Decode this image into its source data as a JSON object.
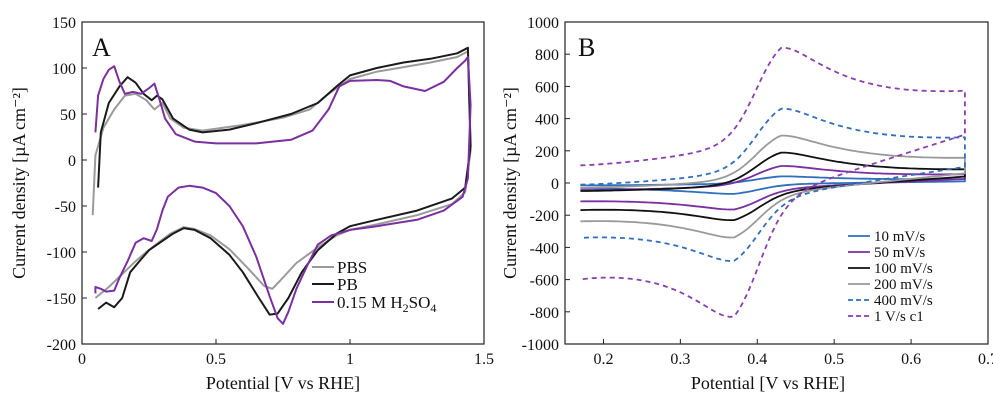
{
  "chart_data": [
    {
      "type": "line",
      "panel_label": "A",
      "xlabel": "Potential [V vs RHE]",
      "ylabel": "Current density [µA cm⁻²]",
      "xlim": [
        0,
        1.5
      ],
      "ylim": [
        -200,
        150
      ],
      "xticks": [
        0,
        0.5,
        1,
        1.5
      ],
      "xtick_labels": [
        "0",
        "0.5",
        "1",
        "1.5"
      ],
      "yticks": [
        150,
        100,
        50,
        0,
        -50,
        -100,
        -150,
        -200
      ],
      "ytick_labels": [
        "150",
        "100",
        "50",
        "0",
        "-50",
        "-100",
        "-150",
        "-200"
      ],
      "grid": false,
      "legend_position": "bottom-right",
      "series": [
        {
          "name": "PBS",
          "color": "#9a9a9a",
          "dash": "solid",
          "points": [
            [
              0.04,
              -60
            ],
            [
              0.05,
              5
            ],
            [
              0.08,
              35
            ],
            [
              0.12,
              55
            ],
            [
              0.16,
              70
            ],
            [
              0.2,
              72
            ],
            [
              0.24,
              65
            ],
            [
              0.27,
              55
            ],
            [
              0.3,
              62
            ],
            [
              0.33,
              45
            ],
            [
              0.38,
              35
            ],
            [
              0.45,
              32
            ],
            [
              0.6,
              38
            ],
            [
              0.75,
              46
            ],
            [
              0.85,
              55
            ],
            [
              0.92,
              72
            ],
            [
              1.0,
              88
            ],
            [
              1.1,
              96
            ],
            [
              1.2,
              101
            ],
            [
              1.3,
              106
            ],
            [
              1.4,
              112
            ],
            [
              1.44,
              118
            ],
            [
              1.45,
              10
            ],
            [
              1.43,
              -35
            ],
            [
              1.38,
              -48
            ],
            [
              1.25,
              -60
            ],
            [
              1.1,
              -70
            ],
            [
              1.0,
              -76
            ],
            [
              0.95,
              -82
            ],
            [
              0.88,
              -95
            ],
            [
              0.8,
              -112
            ],
            [
              0.74,
              -131
            ],
            [
              0.71,
              -140
            ],
            [
              0.68,
              -137
            ],
            [
              0.62,
              -118
            ],
            [
              0.55,
              -97
            ],
            [
              0.48,
              -82
            ],
            [
              0.42,
              -75
            ],
            [
              0.38,
              -73
            ],
            [
              0.33,
              -80
            ],
            [
              0.28,
              -91
            ],
            [
              0.24,
              -100
            ],
            [
              0.2,
              -110
            ],
            [
              0.15,
              -124
            ],
            [
              0.1,
              -138
            ],
            [
              0.05,
              -150
            ]
          ]
        },
        {
          "name": "PB",
          "color": "#1a1a1a",
          "dash": "solid",
          "points": [
            [
              0.06,
              -30
            ],
            [
              0.07,
              30
            ],
            [
              0.1,
              62
            ],
            [
              0.14,
              80
            ],
            [
              0.17,
              90
            ],
            [
              0.2,
              84
            ],
            [
              0.23,
              72
            ],
            [
              0.26,
              65
            ],
            [
              0.28,
              70
            ],
            [
              0.3,
              66
            ],
            [
              0.34,
              45
            ],
            [
              0.4,
              33
            ],
            [
              0.45,
              30
            ],
            [
              0.55,
              33
            ],
            [
              0.65,
              40
            ],
            [
              0.78,
              50
            ],
            [
              0.88,
              62
            ],
            [
              0.95,
              80
            ],
            [
              1.0,
              92
            ],
            [
              1.1,
              100
            ],
            [
              1.2,
              106
            ],
            [
              1.3,
              110
            ],
            [
              1.4,
              116
            ],
            [
              1.44,
              122
            ],
            [
              1.45,
              15
            ],
            [
              1.43,
              -30
            ],
            [
              1.38,
              -42
            ],
            [
              1.25,
              -55
            ],
            [
              1.1,
              -65
            ],
            [
              1.0,
              -72
            ],
            [
              0.95,
              -80
            ],
            [
              0.88,
              -98
            ],
            [
              0.82,
              -122
            ],
            [
              0.77,
              -150
            ],
            [
              0.73,
              -167
            ],
            [
              0.7,
              -168
            ],
            [
              0.66,
              -150
            ],
            [
              0.6,
              -122
            ],
            [
              0.55,
              -103
            ],
            [
              0.48,
              -85
            ],
            [
              0.42,
              -76
            ],
            [
              0.38,
              -74
            ],
            [
              0.34,
              -80
            ],
            [
              0.29,
              -90
            ],
            [
              0.25,
              -98
            ],
            [
              0.22,
              -108
            ],
            [
              0.18,
              -122
            ],
            [
              0.15,
              -150
            ],
            [
              0.12,
              -160
            ],
            [
              0.09,
              -155
            ],
            [
              0.06,
              -162
            ]
          ]
        },
        {
          "name": "0.15 M H2SO4",
          "color": "#7b2fa0",
          "dash": "solid",
          "points": [
            [
              0.05,
              30
            ],
            [
              0.06,
              70
            ],
            [
              0.08,
              88
            ],
            [
              0.1,
              98
            ],
            [
              0.12,
              102
            ],
            [
              0.14,
              85
            ],
            [
              0.16,
              72
            ],
            [
              0.19,
              74
            ],
            [
              0.22,
              72
            ],
            [
              0.25,
              78
            ],
            [
              0.27,
              83
            ],
            [
              0.29,
              65
            ],
            [
              0.31,
              45
            ],
            [
              0.35,
              28
            ],
            [
              0.42,
              20
            ],
            [
              0.5,
              18
            ],
            [
              0.65,
              18
            ],
            [
              0.78,
              22
            ],
            [
              0.86,
              32
            ],
            [
              0.92,
              55
            ],
            [
              0.96,
              80
            ],
            [
              1.0,
              86
            ],
            [
              1.1,
              87
            ],
            [
              1.15,
              86
            ],
            [
              1.2,
              80
            ],
            [
              1.28,
              75
            ],
            [
              1.35,
              85
            ],
            [
              1.4,
              100
            ],
            [
              1.43,
              108
            ],
            [
              1.44,
              112
            ],
            [
              1.45,
              60
            ],
            [
              1.44,
              -20
            ],
            [
              1.42,
              -40
            ],
            [
              1.35,
              -55
            ],
            [
              1.25,
              -65
            ],
            [
              1.1,
              -72
            ],
            [
              1.0,
              -76
            ],
            [
              0.93,
              -82
            ],
            [
              0.88,
              -92
            ],
            [
              0.84,
              -115
            ],
            [
              0.8,
              -140
            ],
            [
              0.77,
              -165
            ],
            [
              0.75,
              -178
            ],
            [
              0.73,
              -172
            ],
            [
              0.7,
              -148
            ],
            [
              0.65,
              -105
            ],
            [
              0.6,
              -72
            ],
            [
              0.55,
              -50
            ],
            [
              0.5,
              -36
            ],
            [
              0.45,
              -30
            ],
            [
              0.4,
              -28
            ],
            [
              0.36,
              -30
            ],
            [
              0.32,
              -40
            ],
            [
              0.3,
              -55
            ],
            [
              0.28,
              -75
            ],
            [
              0.26,
              -88
            ],
            [
              0.23,
              -85
            ],
            [
              0.2,
              -90
            ],
            [
              0.17,
              -110
            ],
            [
              0.14,
              -128
            ],
            [
              0.12,
              -142
            ],
            [
              0.09,
              -143
            ],
            [
              0.07,
              -140
            ],
            [
              0.05,
              -138
            ],
            [
              0.05,
              -145
            ]
          ]
        }
      ]
    },
    {
      "type": "line",
      "panel_label": "B",
      "xlabel": "Potential [V vs RHE]",
      "ylabel": "Current density [µA cm⁻²]",
      "xlim": [
        0.15,
        0.7
      ],
      "ylim": [
        -1000,
        1000
      ],
      "xticks": [
        0.2,
        0.3,
        0.4,
        0.5,
        0.6,
        0.7
      ],
      "xtick_labels": [
        "0.2",
        "0.3",
        "0.4",
        "0.5",
        "0.6",
        "0.7"
      ],
      "yticks": [
        1000,
        800,
        600,
        400,
        200,
        0,
        -200,
        -400,
        -600,
        -800,
        -1000
      ],
      "ytick_labels": [
        "1000",
        "800",
        "600",
        "400",
        "200",
        "0",
        "-200",
        "-400",
        "-600",
        "-800",
        "-1000"
      ],
      "grid": false,
      "legend_position": "bottom-right",
      "cv_params": {
        "x_min": 0.17,
        "x_max": 0.67,
        "x_left": 0.2
      },
      "series": [
        {
          "name": "10 mV/s",
          "color": "#2f6fbd",
          "dash": "solid",
          "anodic_peak": [
            0.43,
            50
          ],
          "cathodic_peak": [
            0.37,
            -80
          ],
          "upper_left": -15,
          "upper_end": 25,
          "lower_end": 10,
          "lower_left": -25
        },
        {
          "name": "50 mV/s",
          "color": "#7b2fa0",
          "dash": "solid",
          "anodic_peak": [
            0.43,
            130
          ],
          "cathodic_peak": [
            0.37,
            -190
          ],
          "upper_left": -45,
          "upper_end": 55,
          "lower_end": 25,
          "lower_left": -100
        },
        {
          "name": "100 mV/s",
          "color": "#111111",
          "dash": "solid",
          "anodic_peak": [
            0.43,
            230
          ],
          "cathodic_peak": [
            0.37,
            -265
          ],
          "upper_left": -50,
          "upper_end": 80,
          "lower_end": 40,
          "lower_left": -150
        },
        {
          "name": "200 mV/s",
          "color": "#9a9a9a",
          "dash": "solid",
          "anodic_peak": [
            0.43,
            350
          ],
          "cathodic_peak": [
            0.37,
            -390
          ],
          "upper_left": -30,
          "upper_end": 150,
          "lower_end": 60,
          "lower_left": -210
        },
        {
          "name": "400 mV/s",
          "color": "#2f6fbd",
          "dash": "dashed",
          "anodic_peak": [
            0.43,
            540
          ],
          "cathodic_peak": [
            0.37,
            -560
          ],
          "upper_left": -10,
          "upper_end": 280,
          "lower_end": 100,
          "lower_left": -300
        },
        {
          "name": "1 V/s c1",
          "color": "#8a3fb0",
          "dash": "dashed",
          "anodic_peak": [
            0.43,
            960
          ],
          "cathodic_peak": [
            0.37,
            -970
          ],
          "upper_left": 110,
          "upper_end": 570,
          "lower_end": 300,
          "lower_left": -530
        }
      ]
    }
  ]
}
